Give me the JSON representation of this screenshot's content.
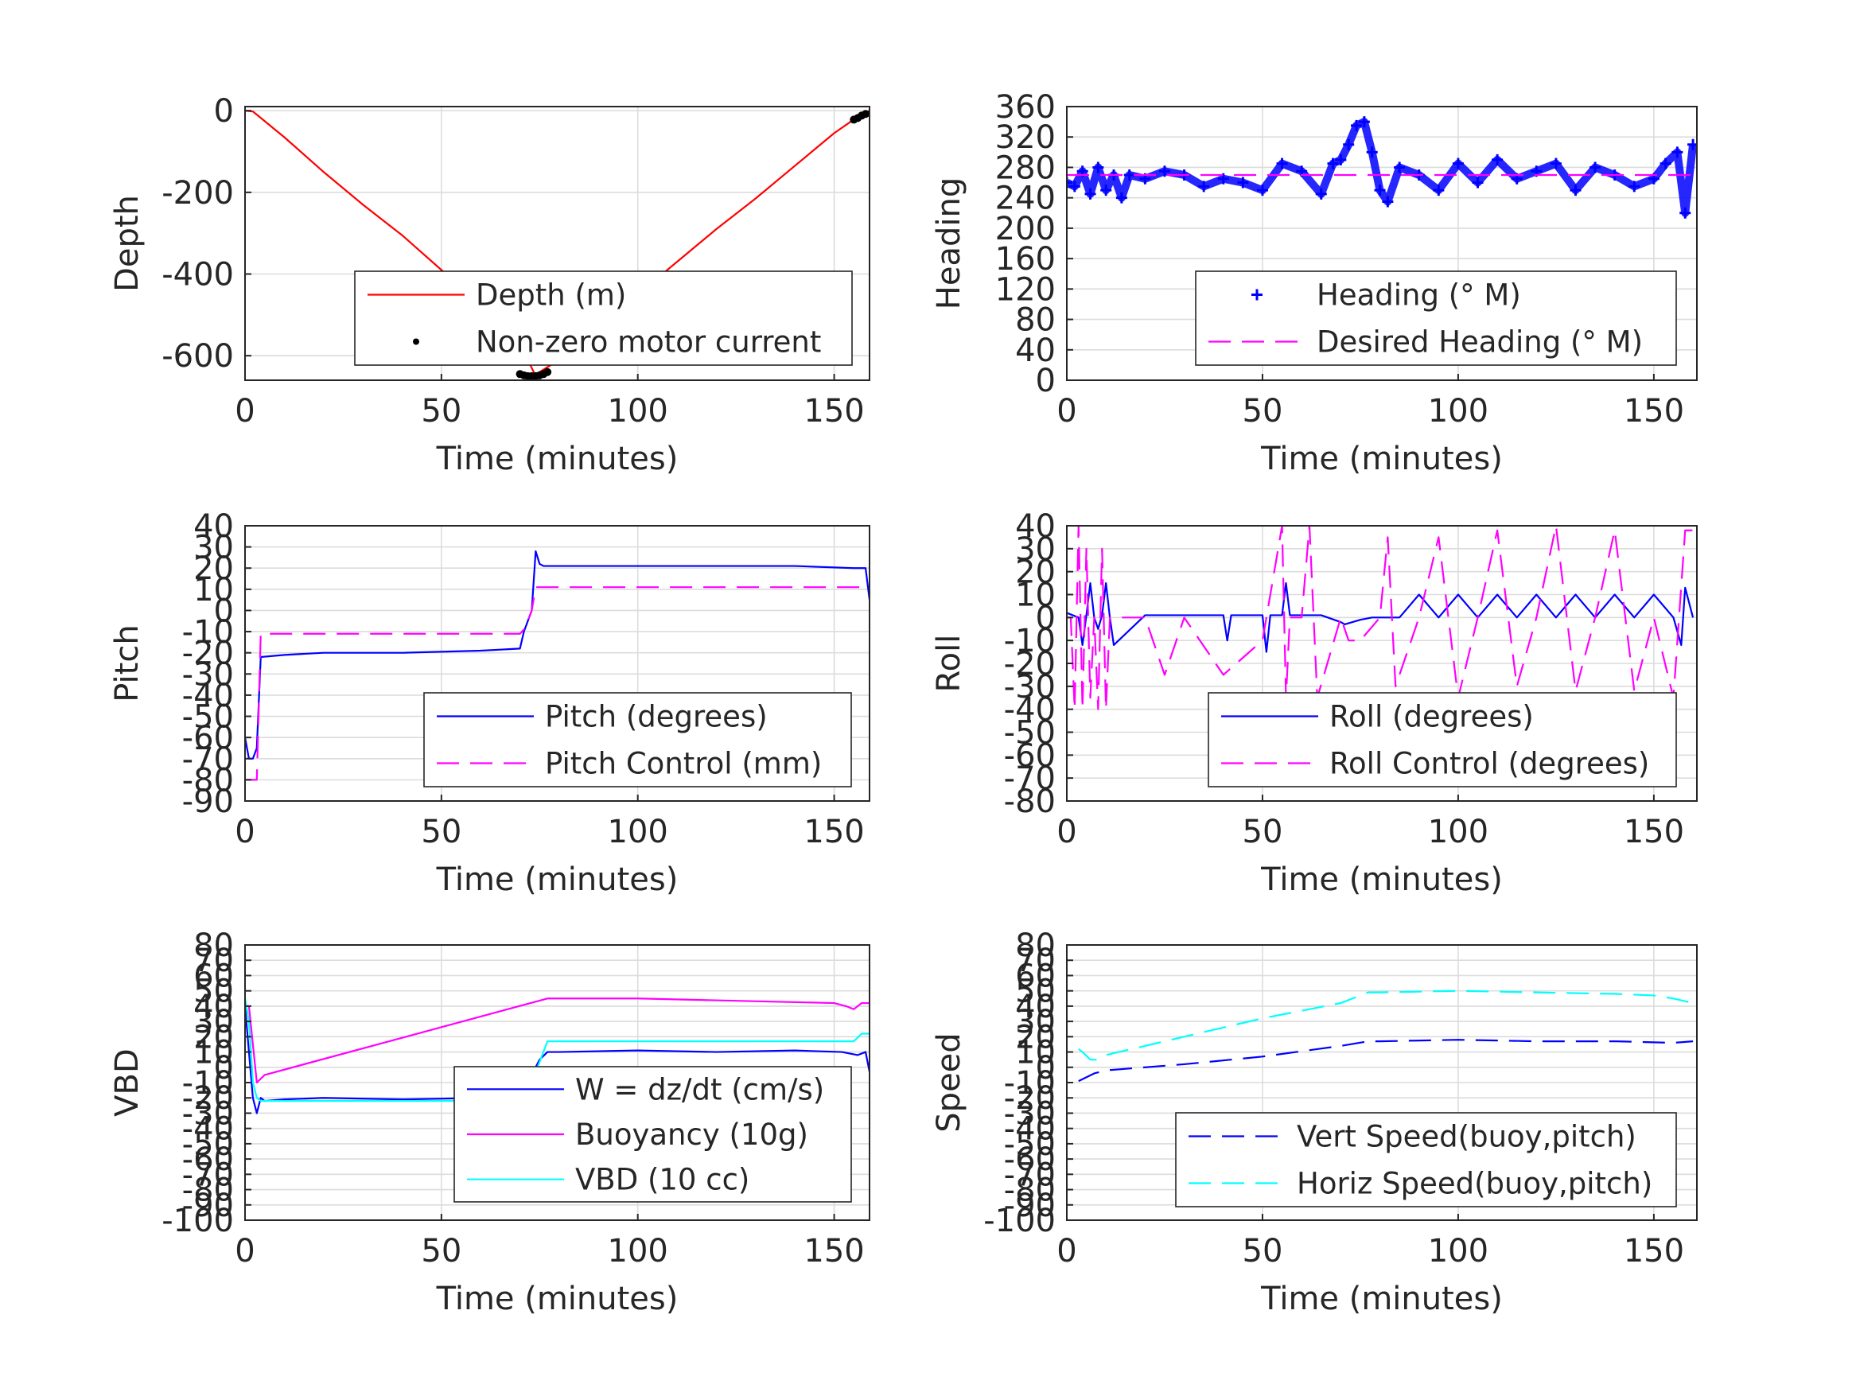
{
  "chart_data": [
    {
      "type": "line",
      "ylabel": "Depth",
      "xlabel": "Time (minutes)",
      "xlim": [
        0,
        159
      ],
      "ylim": [
        -660,
        10
      ],
      "xticks": [
        0,
        50,
        100,
        150
      ],
      "yticks": [
        -600,
        -400,
        -200,
        0
      ],
      "grid": true,
      "legend_position": "bottom-right",
      "series": [
        {
          "name": "Depth (m)",
          "color": "#ff0000",
          "style": "solid",
          "x": [
            0,
            2,
            10,
            20,
            30,
            40,
            50,
            60,
            70,
            72,
            74,
            75,
            80,
            90,
            100,
            110,
            120,
            130,
            140,
            150,
            156,
            159
          ],
          "y": [
            0,
            -2,
            -65,
            -150,
            -230,
            -305,
            -390,
            -470,
            -560,
            -610,
            -650,
            -640,
            -610,
            -530,
            -450,
            -370,
            -290,
            -215,
            -135,
            -55,
            -15,
            0
          ]
        },
        {
          "name": "Non-zero motor current",
          "color": "#000000",
          "style": "dots",
          "x": [
            70,
            71,
            72,
            73,
            74,
            75,
            76,
            77,
            155,
            156,
            157,
            158
          ],
          "y": [
            -645,
            -648,
            -650,
            -650,
            -650,
            -648,
            -645,
            -640,
            -22,
            -18,
            -12,
            -8
          ]
        }
      ]
    },
    {
      "type": "line",
      "ylabel": "Heading",
      "xlabel": "Time (minutes)",
      "xlim": [
        0,
        161
      ],
      "ylim": [
        0,
        360
      ],
      "xticks": [
        0,
        50,
        100,
        150
      ],
      "yticks": [
        0,
        40,
        80,
        120,
        160,
        200,
        240,
        280,
        320,
        360
      ],
      "grid": true,
      "legend_position": "bottom-right",
      "series": [
        {
          "name": "Heading (° M)",
          "color": "#0000ff",
          "style": "plus",
          "x": [
            0,
            2,
            4,
            6,
            8,
            10,
            12,
            14,
            16,
            20,
            25,
            30,
            35,
            40,
            45,
            50,
            55,
            60,
            65,
            68,
            70,
            72,
            74,
            76,
            78,
            80,
            82,
            85,
            90,
            95,
            100,
            105,
            110,
            115,
            120,
            125,
            130,
            135,
            140,
            145,
            150,
            153,
            156,
            158,
            160
          ],
          "y": [
            260,
            255,
            275,
            245,
            280,
            250,
            270,
            240,
            270,
            265,
            275,
            270,
            255,
            265,
            260,
            250,
            285,
            275,
            245,
            285,
            290,
            310,
            335,
            340,
            300,
            250,
            235,
            280,
            270,
            250,
            285,
            260,
            290,
            265,
            275,
            285,
            250,
            280,
            270,
            255,
            265,
            285,
            300,
            220,
            310
          ]
        },
        {
          "name": "Desired Heading (° M)",
          "color": "#ff00ff",
          "style": "dashed",
          "x": [
            0,
            160
          ],
          "y": [
            270,
            270
          ]
        }
      ]
    },
    {
      "type": "line",
      "ylabel": "Pitch",
      "xlabel": "Time (minutes)",
      "xlim": [
        0,
        159
      ],
      "ylim": [
        -90,
        40
      ],
      "xticks": [
        0,
        50,
        100,
        150
      ],
      "yticks": [
        -90,
        -80,
        -70,
        -60,
        -50,
        -40,
        -30,
        -20,
        -10,
        0,
        10,
        20,
        30,
        40
      ],
      "grid": true,
      "legend_position": "bottom-right",
      "series": [
        {
          "name": "Pitch (degrees)",
          "color": "#0000ff",
          "style": "solid",
          "x": [
            0,
            1,
            2,
            3,
            4,
            10,
            20,
            40,
            60,
            70,
            71,
            72,
            73,
            74,
            75,
            76,
            80,
            100,
            120,
            140,
            155,
            158,
            159
          ],
          "y": [
            -60,
            -70,
            -70,
            -65,
            -22,
            -21,
            -20,
            -20,
            -19,
            -18,
            -10,
            -5,
            0,
            28,
            22,
            21,
            21,
            21,
            21,
            21,
            20,
            20,
            5
          ]
        },
        {
          "name": "Pitch Control (mm)",
          "color": "#ff00ff",
          "style": "dashed",
          "x": [
            0,
            2,
            3,
            4,
            10,
            40,
            70,
            71,
            72,
            73,
            74,
            75,
            100,
            159
          ],
          "y": [
            -80,
            -80,
            -80,
            -11,
            -11,
            -11,
            -11,
            -9,
            -5,
            0,
            11,
            11,
            11,
            11
          ]
        }
      ]
    },
    {
      "type": "line",
      "ylabel": "Roll",
      "xlabel": "Time (minutes)",
      "xlim": [
        0,
        161
      ],
      "ylim": [
        -80,
        40
      ],
      "xticks": [
        0,
        50,
        100,
        150
      ],
      "yticks": [
        -80,
        -70,
        -60,
        -50,
        -40,
        -30,
        -20,
        -10,
        0,
        10,
        20,
        30,
        40
      ],
      "grid": true,
      "legend_position": "bottom-right",
      "series": [
        {
          "name": "Roll (degrees)",
          "color": "#0000ff",
          "style": "solid",
          "x": [
            0,
            3,
            4,
            5,
            6,
            7,
            8,
            9,
            10,
            11,
            12,
            20,
            25,
            30,
            40,
            41,
            42,
            50,
            51,
            52,
            55,
            56,
            57,
            60,
            65,
            70,
            71,
            75,
            78,
            80,
            85,
            90,
            95,
            100,
            105,
            110,
            115,
            120,
            125,
            130,
            135,
            140,
            145,
            150,
            155,
            157,
            158,
            160
          ],
          "y": [
            2,
            0,
            -12,
            1,
            15,
            0,
            -5,
            1,
            15,
            0,
            -12,
            1,
            1,
            1,
            1,
            -10,
            1,
            1,
            -15,
            1,
            1,
            15,
            1,
            1,
            1,
            -2,
            -3,
            -1,
            0,
            0,
            0,
            10,
            0,
            10,
            0,
            10,
            0,
            10,
            0,
            10,
            0,
            10,
            0,
            10,
            0,
            -12,
            13,
            0
          ]
        },
        {
          "name": "Roll Control (degrees)",
          "color": "#ff00ff",
          "style": "dashed",
          "x": [
            0,
            1,
            2,
            3,
            4,
            5,
            6,
            7,
            8,
            9,
            10,
            11,
            12,
            20,
            25,
            30,
            40,
            50,
            55,
            56,
            57,
            60,
            62,
            64,
            70,
            72,
            75,
            80,
            82,
            84,
            90,
            95,
            100,
            105,
            110,
            115,
            120,
            125,
            130,
            135,
            140,
            145,
            150,
            155,
            158,
            160
          ],
          "y": [
            0,
            0,
            -40,
            40,
            -40,
            30,
            -35,
            0,
            -40,
            30,
            -40,
            0,
            0,
            0,
            -25,
            0,
            -25,
            -10,
            40,
            -35,
            0,
            0,
            40,
            -35,
            0,
            -10,
            -10,
            0,
            35,
            -30,
            0,
            35,
            -35,
            0,
            38,
            -30,
            0,
            40,
            -32,
            0,
            38,
            -32,
            0,
            -35,
            38,
            38
          ]
        }
      ]
    },
    {
      "type": "line",
      "ylabel": "VBD",
      "xlabel": "Time (minutes)",
      "xlim": [
        0,
        159
      ],
      "ylim": [
        -100,
        80
      ],
      "xticks": [
        0,
        50,
        100,
        150
      ],
      "yticks": [
        -100,
        -90,
        -80,
        -70,
        -60,
        -50,
        -40,
        -30,
        -20,
        -10,
        0,
        10,
        20,
        30,
        40,
        50,
        60,
        70,
        80
      ],
      "ytick_labels": [
        "-100",
        "-90",
        "-80",
        "-70",
        "-60",
        "-50",
        "-40",
        "-30",
        "-20",
        "-10",
        "0",
        "10",
        "20",
        "30",
        "40",
        "50",
        "60",
        "70",
        "80"
      ],
      "grid": true,
      "legend_position": "bottom-right",
      "series": [
        {
          "name": "W = dz/dt (cm/s)",
          "color": "#0000ff",
          "style": "solid",
          "x": [
            0,
            1,
            2,
            3,
            4,
            5,
            10,
            20,
            40,
            60,
            70,
            71,
            72,
            73,
            75,
            77,
            80,
            100,
            120,
            140,
            152,
            156,
            158,
            159
          ],
          "y": [
            40,
            10,
            -20,
            -30,
            -20,
            -22,
            -21,
            -20,
            -21,
            -20,
            -20,
            -10,
            -5,
            -5,
            5,
            10,
            10,
            11,
            10,
            11,
            10,
            8,
            10,
            -3
          ]
        },
        {
          "name": "Buoyancy (10g)",
          "color": "#ff00ff",
          "style": "solid",
          "x": [
            0,
            1,
            3,
            5,
            77,
            100,
            150,
            153,
            155,
            157,
            159
          ],
          "y": [
            40,
            40,
            -10,
            -5,
            45,
            45,
            42,
            40,
            38,
            42,
            42
          ]
        },
        {
          "name": "VBD (10 cc)",
          "color": "#00ffff",
          "style": "solid",
          "x": [
            0,
            1,
            2,
            3,
            4,
            70,
            71,
            72,
            73,
            77,
            80,
            100,
            150,
            155,
            157,
            159
          ],
          "y": [
            45,
            30,
            -10,
            -20,
            -22,
            -22,
            -20,
            -15,
            -10,
            17,
            17,
            17,
            17,
            17,
            22,
            22
          ]
        }
      ]
    },
    {
      "type": "line",
      "ylabel": "Speed",
      "xlabel": "Time (minutes)",
      "xlim": [
        0,
        161
      ],
      "ylim": [
        -100,
        80
      ],
      "xticks": [
        0,
        50,
        100,
        150
      ],
      "yticks": [
        -100,
        -90,
        -80,
        -70,
        -60,
        -50,
        -40,
        -30,
        -20,
        -10,
        0,
        10,
        20,
        30,
        40,
        50,
        60,
        70,
        80
      ],
      "ytick_labels": [
        "-100",
        "-90",
        "-80",
        "-70",
        "-60",
        "-50",
        "-40",
        "-30",
        "-20",
        "-10",
        "0",
        "10",
        "20",
        "30",
        "40",
        "50",
        "60",
        "70",
        "80"
      ],
      "grid": true,
      "legend_position": "bottom-right",
      "series": [
        {
          "name": "Vert Speed(buoy,pitch)",
          "color": "#0000ff",
          "style": "dashed",
          "x": [
            3,
            7,
            10,
            30,
            50,
            70,
            77,
            80,
            100,
            120,
            140,
            155,
            160
          ],
          "y": [
            -9,
            -4,
            -2,
            2,
            7,
            14,
            17,
            17,
            18,
            17,
            17,
            16,
            17
          ]
        },
        {
          "name": "Horiz Speed(buoy,pitch)",
          "color": "#00ffff",
          "style": "dashed",
          "x": [
            3,
            4,
            6,
            8,
            10,
            30,
            50,
            70,
            77,
            80,
            100,
            120,
            140,
            150,
            155,
            160
          ],
          "y": [
            12,
            10,
            5,
            5,
            8,
            20,
            32,
            42,
            49,
            49,
            50,
            49,
            48,
            47,
            45,
            42
          ]
        }
      ]
    }
  ]
}
